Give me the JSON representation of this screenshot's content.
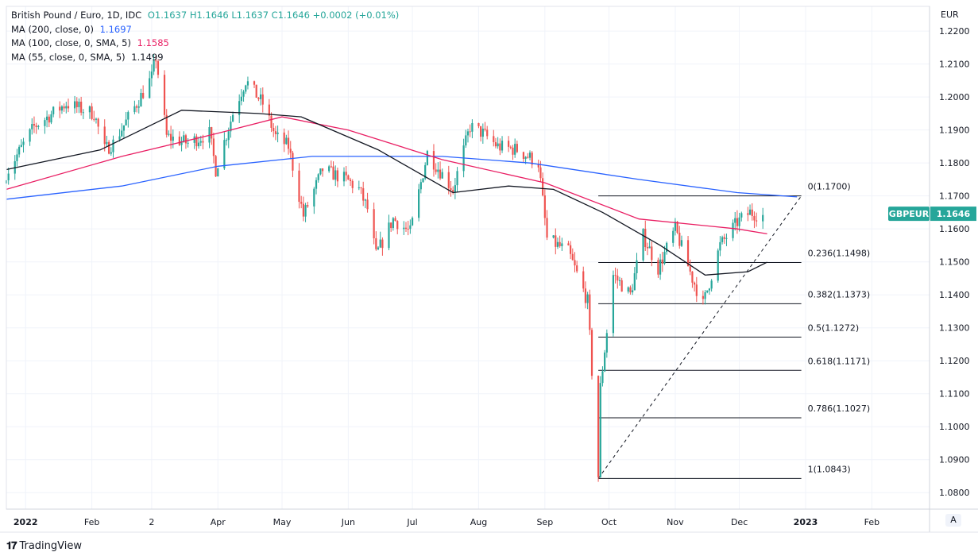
{
  "header": {
    "symbol_title": "British Pound / Euro, 1D, IDC",
    "ohlc": "O1.1637  H1.1646  L1.1637  C1.1646  +0.0002 (+0.01%)"
  },
  "indicators": [
    {
      "label": "MA (200, close, 0)",
      "value": "1.1697",
      "color": "#2962ff"
    },
    {
      "label": "MA (100, close, 0, SMA, 5)",
      "value": "1.1585",
      "color": "#e91e63"
    },
    {
      "label": "MA (55, close, 0, SMA, 5)",
      "value": "1.1499",
      "color": "#131722"
    }
  ],
  "footer": {
    "brand": "TradingView",
    "auto_scale_button": "A"
  },
  "chart_data": {
    "type": "candlestick",
    "currency": "EUR",
    "symbol_badge": {
      "label": "GBPEUR",
      "value": "1.1646",
      "color": "#26a69a"
    },
    "ylim": [
      1.075,
      1.2275
    ],
    "y_ticks": [
      1.08,
      1.09,
      1.1,
      1.11,
      1.12,
      1.13,
      1.14,
      1.15,
      1.16,
      1.17,
      1.18,
      1.19,
      1.2,
      1.21,
      1.22
    ],
    "y_tick_labels": [
      "1.0800",
      "1.0900",
      "1.1000",
      "1.1100",
      "1.1200",
      "1.1300",
      "1.1400",
      "1.1500",
      "1.1600",
      "1.1700",
      "1.1800",
      "1.1900",
      "1.2000",
      "1.2100",
      "1.2200"
    ],
    "x_range": [
      "2021-12-23",
      "2023-02-28"
    ],
    "x_ticks": [
      {
        "date": "2022-01-01",
        "label": "2022"
      },
      {
        "date": "2022-02-01",
        "label": "Feb"
      },
      {
        "date": "2022-03-01",
        "label": "2"
      },
      {
        "date": "2022-04-01",
        "label": "Apr"
      },
      {
        "date": "2022-05-01",
        "label": "May"
      },
      {
        "date": "2022-06-01",
        "label": "Jun"
      },
      {
        "date": "2022-07-01",
        "label": "Jul"
      },
      {
        "date": "2022-08-01",
        "label": "Aug"
      },
      {
        "date": "2022-09-01",
        "label": "Sep"
      },
      {
        "date": "2022-10-01",
        "label": "Oct"
      },
      {
        "date": "2022-11-01",
        "label": "Nov"
      },
      {
        "date": "2022-12-01",
        "label": "Dec"
      },
      {
        "date": "2023-01-01",
        "label": "2023"
      },
      {
        "date": "2023-02-01",
        "label": "Feb"
      }
    ],
    "close_path": [
      [
        "2021-12-23",
        1.177
      ],
      [
        "2022-01-05",
        1.191
      ],
      [
        "2022-01-20",
        1.198
      ],
      [
        "2022-02-02",
        1.195
      ],
      [
        "2022-02-07",
        1.184
      ],
      [
        "2022-02-11",
        1.186
      ],
      [
        "2022-02-22",
        1.198
      ],
      [
        "2022-03-01",
        1.206
      ],
      [
        "2022-03-03",
        1.212
      ],
      [
        "2022-03-08",
        1.188
      ],
      [
        "2022-03-18",
        1.186
      ],
      [
        "2022-03-28",
        1.189
      ],
      [
        "2022-03-31",
        1.178
      ],
      [
        "2022-04-08",
        1.195
      ],
      [
        "2022-04-14",
        1.205
      ],
      [
        "2022-04-22",
        1.198
      ],
      [
        "2022-04-28",
        1.188
      ],
      [
        "2022-05-04",
        1.185
      ],
      [
        "2022-05-11",
        1.164
      ],
      [
        "2022-05-20",
        1.178
      ],
      [
        "2022-05-31",
        1.175
      ],
      [
        "2022-06-06",
        1.172
      ],
      [
        "2022-06-10",
        1.166
      ],
      [
        "2022-06-14",
        1.152
      ],
      [
        "2022-06-22",
        1.163
      ],
      [
        "2022-06-30",
        1.159
      ],
      [
        "2022-07-08",
        1.183
      ],
      [
        "2022-07-20",
        1.172
      ],
      [
        "2022-07-28",
        1.191
      ],
      [
        "2022-08-03",
        1.189
      ],
      [
        "2022-08-10",
        1.185
      ],
      [
        "2022-08-19",
        1.184
      ],
      [
        "2022-08-29",
        1.18
      ],
      [
        "2022-09-02",
        1.157
      ],
      [
        "2022-09-12",
        1.153
      ],
      [
        "2022-09-21",
        1.138
      ],
      [
        "2022-09-26",
        1.085
      ],
      [
        "2022-09-27",
        1.112
      ],
      [
        "2022-10-03",
        1.146
      ],
      [
        "2022-10-11",
        1.14
      ],
      [
        "2022-10-17",
        1.158
      ],
      [
        "2022-10-24",
        1.148
      ],
      [
        "2022-11-01",
        1.16
      ],
      [
        "2022-11-09",
        1.145
      ],
      [
        "2022-11-14",
        1.137
      ],
      [
        "2022-11-22",
        1.155
      ],
      [
        "2022-11-30",
        1.162
      ],
      [
        "2022-12-06",
        1.165
      ],
      [
        "2022-12-12",
        1.164
      ]
    ],
    "series": [
      {
        "name": "MA (200, close, 0)",
        "color": "#2962ff",
        "points": [
          [
            "2021-12-23",
            1.169
          ],
          [
            "2022-02-15",
            1.173
          ],
          [
            "2022-04-01",
            1.179
          ],
          [
            "2022-05-15",
            1.182
          ],
          [
            "2022-07-15",
            1.182
          ],
          [
            "2022-08-25",
            1.18
          ],
          [
            "2022-10-15",
            1.175
          ],
          [
            "2022-11-30",
            1.171
          ],
          [
            "2022-12-28",
            1.1697
          ]
        ]
      },
      {
        "name": "MA (100, close, 0, SMA, 5)",
        "color": "#e91e63",
        "points": [
          [
            "2021-12-23",
            1.172
          ],
          [
            "2022-02-15",
            1.182
          ],
          [
            "2022-04-01",
            1.189
          ],
          [
            "2022-05-01",
            1.194
          ],
          [
            "2022-06-01",
            1.19
          ],
          [
            "2022-07-15",
            1.181
          ],
          [
            "2022-09-01",
            1.174
          ],
          [
            "2022-10-15",
            1.163
          ],
          [
            "2022-11-30",
            1.16
          ],
          [
            "2022-12-14",
            1.1585
          ]
        ]
      },
      {
        "name": "MA (55, close, 0, SMA, 5)",
        "color": "#131722",
        "points": [
          [
            "2021-12-23",
            1.178
          ],
          [
            "2022-02-05",
            1.184
          ],
          [
            "2022-03-15",
            1.196
          ],
          [
            "2022-04-20",
            1.195
          ],
          [
            "2022-05-10",
            1.194
          ],
          [
            "2022-06-15",
            1.184
          ],
          [
            "2022-07-20",
            1.171
          ],
          [
            "2022-08-15",
            1.173
          ],
          [
            "2022-09-05",
            1.172
          ],
          [
            "2022-09-28",
            1.165
          ],
          [
            "2022-10-25",
            1.155
          ],
          [
            "2022-11-15",
            1.146
          ],
          [
            "2022-12-05",
            1.147
          ],
          [
            "2022-12-14",
            1.1499
          ]
        ]
      }
    ],
    "fibonacci": {
      "start_date": "2022-09-26",
      "end_date": "2022-12-30",
      "trend_line": [
        [
          "2022-09-26",
          1.0843
        ],
        [
          "2022-12-30",
          1.17
        ]
      ],
      "levels": [
        {
          "ratio": "0",
          "price": 1.17,
          "label": "0(1.1700)"
        },
        {
          "ratio": "0.236",
          "price": 1.1498,
          "label": "0.236(1.1498)"
        },
        {
          "ratio": "0.382",
          "price": 1.1373,
          "label": "0.382(1.1373)"
        },
        {
          "ratio": "0.5",
          "price": 1.1272,
          "label": "0.5(1.1272)"
        },
        {
          "ratio": "0.618",
          "price": 1.1171,
          "label": "0.618(1.1171)"
        },
        {
          "ratio": "0.786",
          "price": 1.1027,
          "label": "0.786(1.1027)"
        },
        {
          "ratio": "1",
          "price": 1.0843,
          "label": "1(1.0843)"
        }
      ]
    },
    "up_color": "#26a69a",
    "down_color": "#ef5350"
  }
}
